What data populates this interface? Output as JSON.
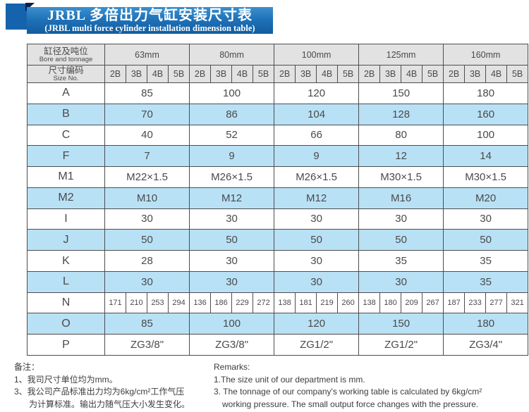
{
  "title": {
    "line1": "JRBL 多倍出力气缸安装尺寸表",
    "line2": "(JRBL multi force cylinder installation dimension table)"
  },
  "table": {
    "corner_header": {
      "zh": "缸径及吨位",
      "en": "Bore and tonnage"
    },
    "size_header": {
      "zh": "尺寸编码",
      "en": "Size No."
    },
    "bore_groups": [
      "63mm",
      "80mm",
      "100mm",
      "125mm",
      "160mm"
    ],
    "size_codes": [
      "2B",
      "3B",
      "4B",
      "5B"
    ],
    "rows": [
      {
        "label": "A",
        "span": true,
        "highlight": false,
        "values": [
          "85",
          "100",
          "120",
          "150",
          "180"
        ]
      },
      {
        "label": "B",
        "span": true,
        "highlight": true,
        "values": [
          "70",
          "86",
          "104",
          "128",
          "160"
        ]
      },
      {
        "label": "C",
        "span": true,
        "highlight": false,
        "values": [
          "40",
          "52",
          "66",
          "80",
          "100"
        ]
      },
      {
        "label": "F",
        "span": true,
        "highlight": true,
        "values": [
          "7",
          "9",
          "9",
          "12",
          "14"
        ]
      },
      {
        "label": "M1",
        "span": true,
        "highlight": false,
        "values": [
          "M22×1.5",
          "M26×1.5",
          "M26×1.5",
          "M30×1.5",
          "M30×1.5"
        ]
      },
      {
        "label": "M2",
        "span": true,
        "highlight": true,
        "values": [
          "M10",
          "M12",
          "M12",
          "M16",
          "M20"
        ]
      },
      {
        "label": "I",
        "span": true,
        "highlight": false,
        "values": [
          "30",
          "30",
          "30",
          "30",
          "30"
        ]
      },
      {
        "label": "J",
        "span": true,
        "highlight": true,
        "values": [
          "50",
          "50",
          "50",
          "50",
          "50"
        ]
      },
      {
        "label": "K",
        "span": true,
        "highlight": false,
        "values": [
          "28",
          "30",
          "30",
          "35",
          "35"
        ]
      },
      {
        "label": "L",
        "span": true,
        "highlight": true,
        "values": [
          "30",
          "30",
          "30",
          "30",
          "35"
        ]
      },
      {
        "label": "N",
        "span": false,
        "highlight": false,
        "values": [
          "171",
          "210",
          "253",
          "294",
          "136",
          "186",
          "229",
          "272",
          "138",
          "181",
          "219",
          "260",
          "138",
          "180",
          "209",
          "267",
          "187",
          "233",
          "277",
          "321"
        ]
      },
      {
        "label": "O",
        "span": true,
        "highlight": true,
        "values": [
          "85",
          "100",
          "120",
          "150",
          "180"
        ]
      },
      {
        "label": "P",
        "span": true,
        "highlight": false,
        "values": [
          "ZG3/8\"",
          "ZG3/8\"",
          "ZG1/2\"",
          "ZG1/2\"",
          "ZG3/4\""
        ]
      }
    ]
  },
  "remarks": {
    "zh": {
      "heading": "备注：",
      "lines": [
        "1、我司尺寸单位均为mm。",
        "3、我公司产品标准出力均为6kg/cm²工作气压",
        "为计算标准。输出力随气压大小发生变化。"
      ]
    },
    "en": {
      "heading": "Remarks:",
      "lines": [
        "1.The size unit of our department is mm.",
        "3. The tonnage of our company's working table is calculated by 6kg/cm²",
        "working pressure. The small output force changes with the pressure."
      ]
    }
  },
  "colors": {
    "banner_blue": "#1e70b6",
    "ribbon_blue": "#1463ac",
    "fold_navy": "#0e1e4b",
    "header_gray": "#e2e2e2",
    "row_highlight_blue": "#b9e1f6",
    "border": "#4d4d4d",
    "text": "#4a4a4a"
  }
}
